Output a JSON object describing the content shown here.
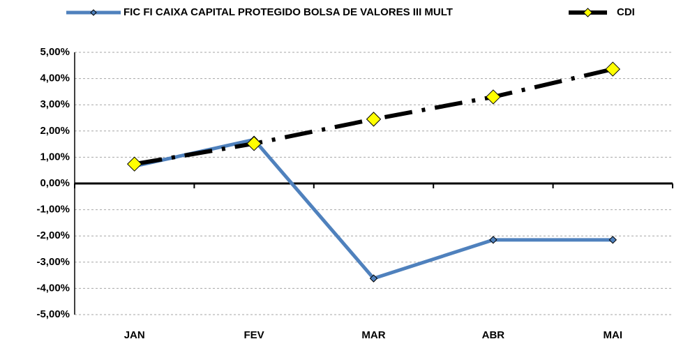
{
  "chart_data": {
    "type": "line",
    "categories": [
      "JAN",
      "FEV",
      "MAR",
      "ABR",
      "MAI"
    ],
    "series": [
      {
        "name": "FIC FI CAIXA CAPITAL PROTEGIDO BOLSA DE VALORES III MULT",
        "color": "#4f81bd",
        "values": [
          0.66,
          1.67,
          -3.62,
          -2.15,
          -2.15
        ]
      },
      {
        "name": "CDI",
        "color": "#000000",
        "values": [
          0.74,
          1.52,
          2.45,
          3.3,
          4.36
        ]
      }
    ],
    "ylim": [
      -5,
      5
    ],
    "yticks": [
      {
        "value": -5,
        "label": "-5,00%"
      },
      {
        "value": -4,
        "label": "-4,00%"
      },
      {
        "value": -3,
        "label": "-3,00%"
      },
      {
        "value": -2,
        "label": "-2,00%"
      },
      {
        "value": -1,
        "label": "-1,00%"
      },
      {
        "value": 0,
        "label": "0,00%"
      },
      {
        "value": 1,
        "label": "1,00%"
      },
      {
        "value": 2,
        "label": "2,00%"
      },
      {
        "value": 3,
        "label": "3,00%"
      },
      {
        "value": 4,
        "label": "4,00%"
      },
      {
        "value": 5,
        "label": "5,00%"
      }
    ],
    "grid": true,
    "legend": "top"
  }
}
